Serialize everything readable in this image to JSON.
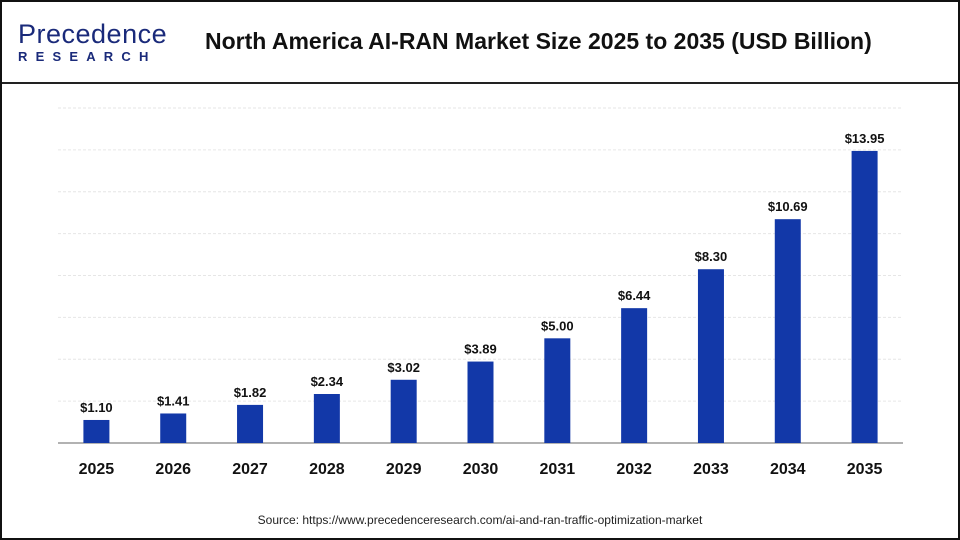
{
  "logo": {
    "line1": "Precedence",
    "line2": "RESEARCH"
  },
  "header": {
    "title": "North America AI-RAN Market Size 2025 to 2035 (USD Billion)"
  },
  "source": "Source: https://www.precedenceresearch.com/ai-and-ran-traffic-optimization-market",
  "chart_data": {
    "type": "bar",
    "title": "North America AI-RAN Market Size 2025 to 2035 (USD Billion)",
    "categories": [
      "2025",
      "2026",
      "2027",
      "2028",
      "2029",
      "2030",
      "2031",
      "2032",
      "2033",
      "2034",
      "2035"
    ],
    "values": [
      1.1,
      1.41,
      1.82,
      2.34,
      3.02,
      3.89,
      5.0,
      6.44,
      8.3,
      10.69,
      13.95
    ],
    "data_labels": [
      "$1.10",
      "$1.41",
      "$1.82",
      "$2.34",
      "$3.02",
      "$3.89",
      "$5.00",
      "$6.44",
      "$8.30",
      "$10.69",
      "$13.95"
    ],
    "ylim": [
      0,
      16
    ],
    "grid": true,
    "bar_color": "#1238a8",
    "xlabel": "",
    "ylabel": ""
  }
}
